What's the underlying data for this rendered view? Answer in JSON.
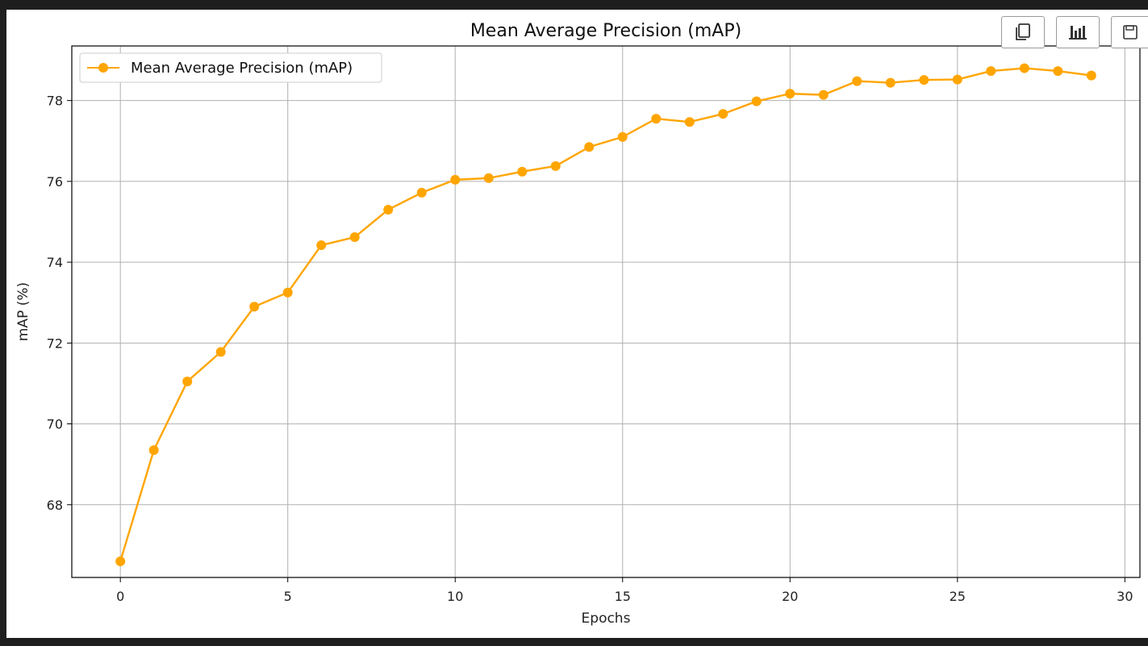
{
  "toolbar": {
    "buttons": [
      {
        "icon": "copy-icon"
      },
      {
        "icon": "bar-chart-icon"
      },
      {
        "icon": "save-icon"
      }
    ]
  },
  "chart_data": {
    "type": "line",
    "title": "Mean Average Precision (mAP)",
    "xlabel": "Epochs",
    "ylabel": "mAP (%)",
    "xlim": [
      -1.45,
      30.45
    ],
    "ylim": [
      66.2,
      79.35
    ],
    "xticks": [
      0,
      5,
      10,
      15,
      20,
      25,
      30
    ],
    "yticks": [
      68,
      70,
      72,
      74,
      76,
      78
    ],
    "grid": true,
    "legend_position": "upper-left",
    "color": "#ffa500",
    "series": [
      {
        "name": "Mean Average Precision (mAP)",
        "marker": "circle",
        "x": [
          0,
          1,
          2,
          3,
          4,
          5,
          6,
          7,
          8,
          9,
          10,
          11,
          12,
          13,
          14,
          15,
          16,
          17,
          18,
          19,
          20,
          21,
          22,
          23,
          24,
          25,
          26,
          27,
          28,
          29
        ],
        "y": [
          66.6,
          69.35,
          71.05,
          71.78,
          72.9,
          73.25,
          74.42,
          74.62,
          75.3,
          75.72,
          76.04,
          76.08,
          76.24,
          76.38,
          76.85,
          77.1,
          77.55,
          77.47,
          77.67,
          77.98,
          78.17,
          78.14,
          78.48,
          78.44,
          78.51,
          78.52,
          78.73,
          78.8,
          78.73,
          78.62
        ]
      }
    ]
  }
}
